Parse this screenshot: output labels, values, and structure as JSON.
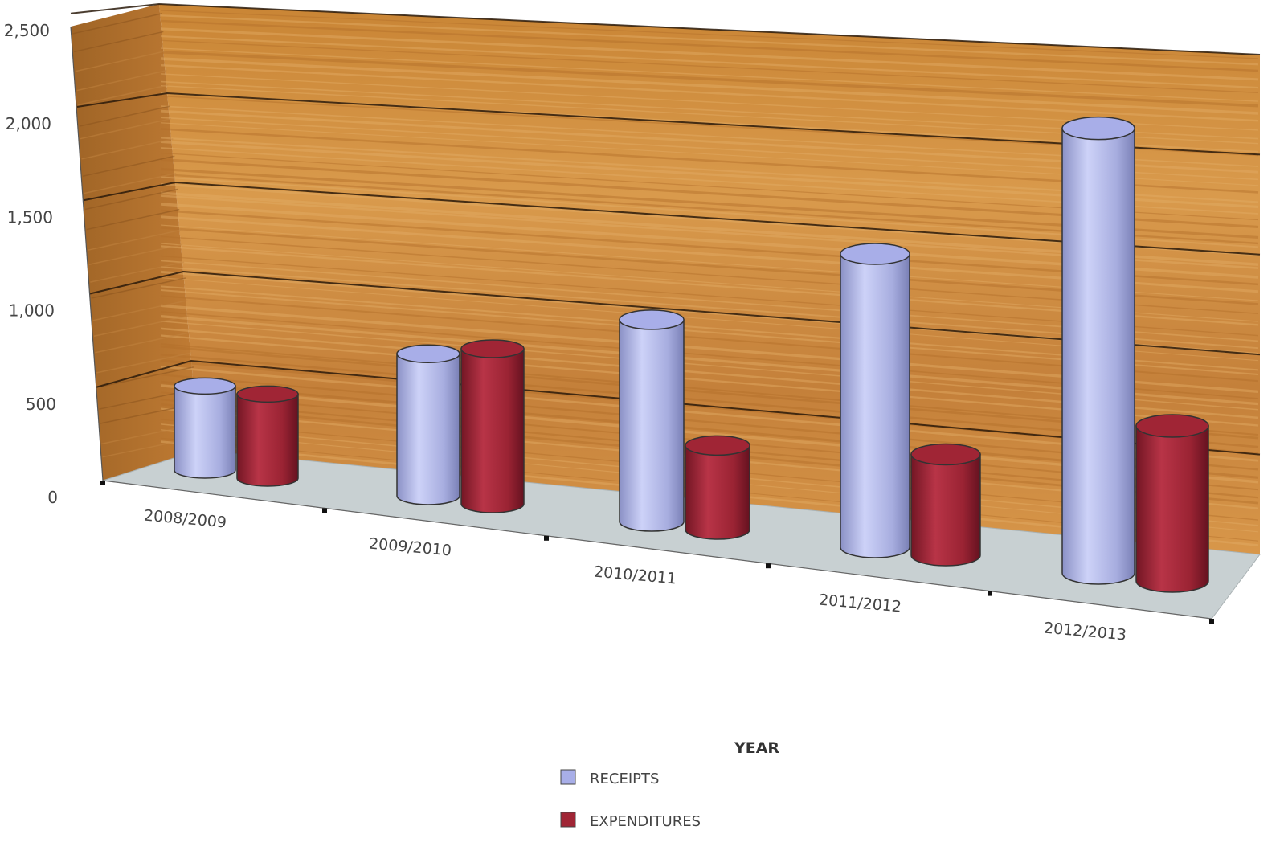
{
  "chart_data": {
    "type": "bar",
    "title": "",
    "xlabel": "",
    "ylabel": "",
    "ylim": [
      0,
      2500
    ],
    "yticks": [
      "0",
      "500",
      "1,000",
      "1,500",
      "2,000",
      "2,500"
    ],
    "categories": [
      "2008/2009",
      "2009/2010",
      "2010/2011",
      "2011/2012",
      "2012/2013"
    ],
    "series": [
      {
        "name": "RECEIPTS",
        "color": "#a8aee8",
        "values": [
          450,
          760,
          1080,
          1570,
          2380
        ]
      },
      {
        "name": "EXPENDITURES",
        "color": "#a02535",
        "values": [
          450,
          830,
          450,
          540,
          830
        ]
      }
    ],
    "grid": true,
    "legend": {
      "title": "YEAR",
      "placement": "bottom-center"
    },
    "background": {
      "wall": "wood",
      "wall_color": "#d18a3d",
      "floor_color": "#c8d0d2"
    }
  }
}
